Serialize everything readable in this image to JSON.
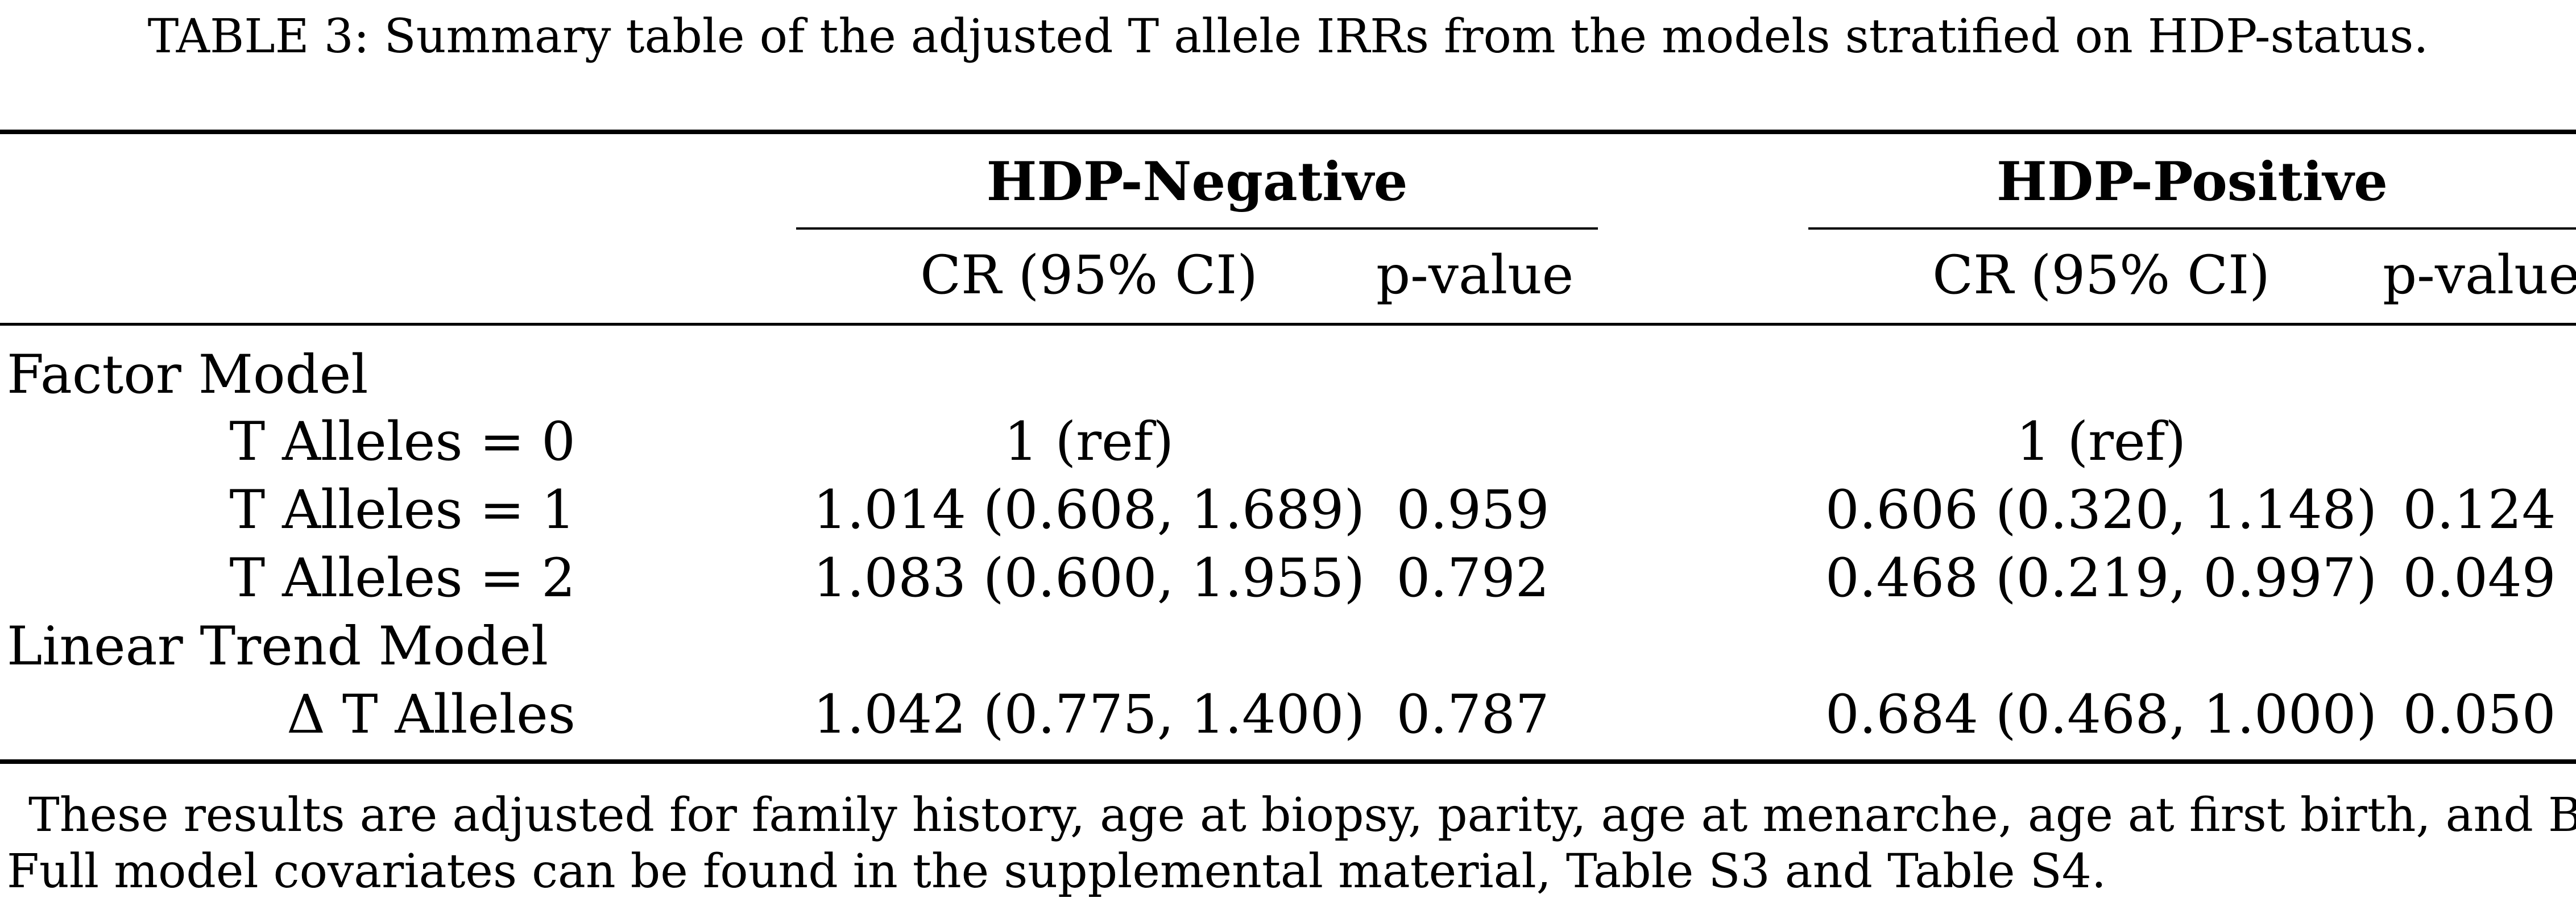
{
  "caption": "TABLE 3: Summary table of the adjusted T allele IRRs from the models stratified on HDP-status.",
  "groups": {
    "negative": "HDP-Negative",
    "positive": "HDP-Positive"
  },
  "columns": {
    "neg_cr": "CR (95% CI)",
    "neg_p": "p-value",
    "pos_cr": "CR (95% CI)",
    "pos_p": "p-value"
  },
  "sections": [
    {
      "title": "Factor Model",
      "rows": [
        {
          "label": "T Alleles = 0",
          "neg_cr": "1 (ref)",
          "neg_p": "",
          "pos_cr": "1 (ref)",
          "pos_p": ""
        },
        {
          "label": "T Alleles = 1",
          "neg_cr": "1.014 (0.608, 1.689)",
          "neg_p": "0.959",
          "pos_cr": "0.606 (0.320, 1.148)",
          "pos_p": "0.124"
        },
        {
          "label": "T Alleles = 2",
          "neg_cr": "1.083 (0.600, 1.955)",
          "neg_p": "0.792",
          "pos_cr": "0.468 (0.219, 0.997)",
          "pos_p": "0.049"
        }
      ]
    },
    {
      "title": "Linear Trend Model",
      "rows": [
        {
          "label": "Δ T Alleles",
          "neg_cr": "1.042 (0.775, 1.400)",
          "neg_p": "0.787",
          "pos_cr": "0.684 (0.468, 1.000)",
          "pos_p": "0.050"
        }
      ]
    }
  ],
  "notes": [
    "These results are adjusted for family history, age at biopsy, parity, age at menarche, age at first birth, and BMI.",
    "Full model covariates can be found in the supplemental material, Table S3 and Table S4."
  ]
}
